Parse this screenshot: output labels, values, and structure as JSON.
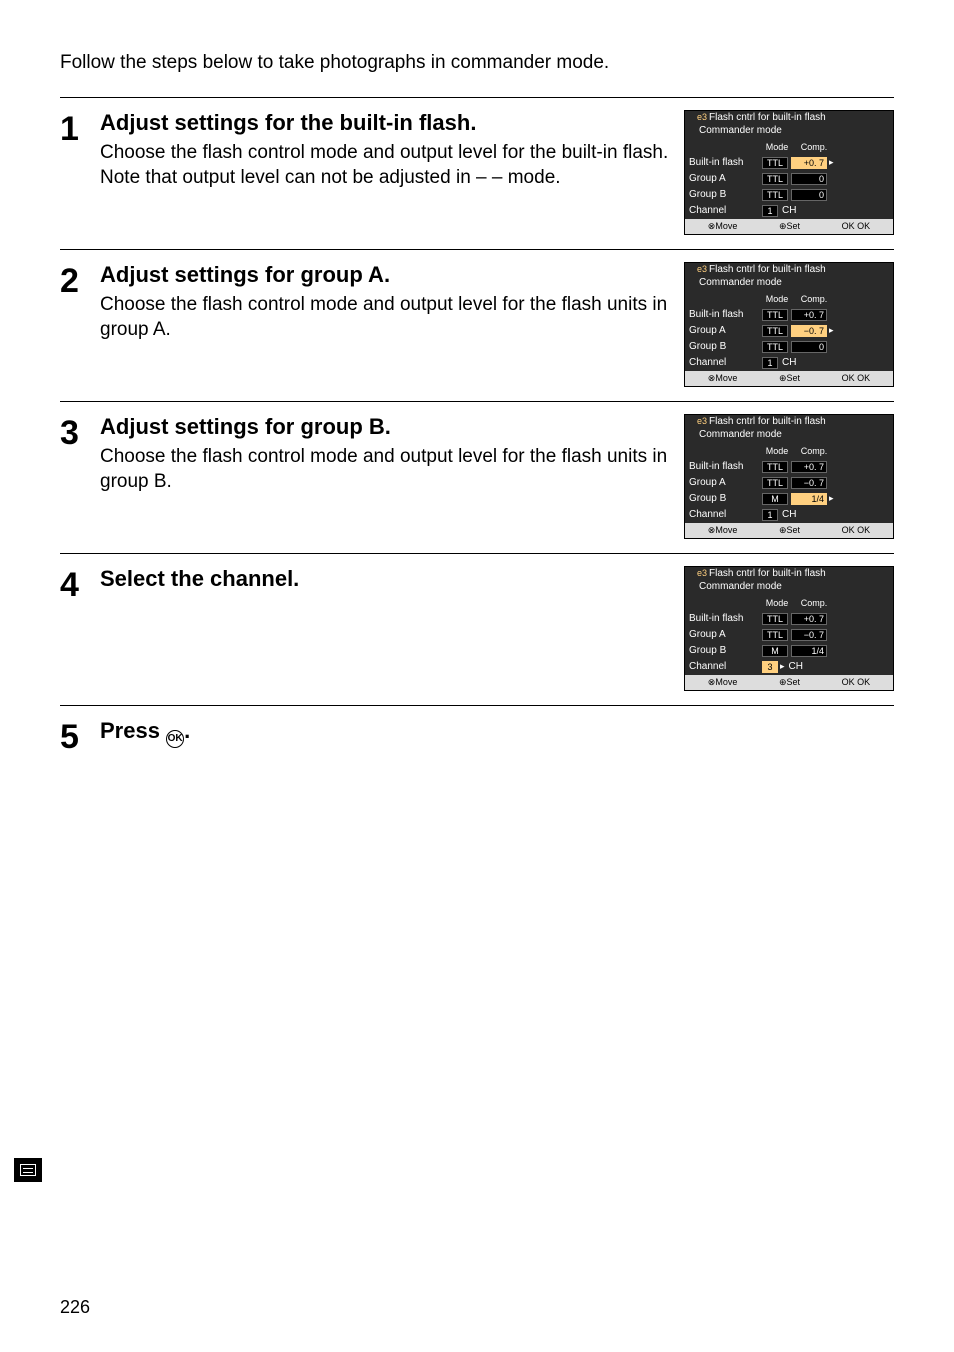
{
  "intro": "Follow the steps below to take photographs in commander mode.",
  "steps": [
    {
      "num": "1",
      "title": "Adjust settings for the built-in flash.",
      "text": "Choose the flash control mode and output level for the built-in flash.  Note that output level can not be adjusted in – – mode.",
      "screen": {
        "title_prefix": "e3",
        "title": "Flash cntrl for built-in flash",
        "subtitle": "Commander mode",
        "col_mode": "Mode",
        "col_comp": "Comp.",
        "rows": [
          {
            "label": "Built-in flash",
            "mode": "TTL",
            "mode_hl": false,
            "comp": "+0. 7",
            "comp_hl": true,
            "comp_after": "▸"
          },
          {
            "label": "Group A",
            "mode": "TTL",
            "mode_hl": false,
            "comp": "0",
            "comp_hl": false
          },
          {
            "label": "Group B",
            "mode": "TTL",
            "mode_hl": false,
            "comp": "0",
            "comp_hl": false
          }
        ],
        "channel_label": "Channel",
        "channel_val": "1",
        "channel_hl": false,
        "channel_suffix": "CH",
        "footer": [
          "⊗Move",
          "⊕Set",
          "OK OK"
        ]
      }
    },
    {
      "num": "2",
      "title": "Adjust settings for group A.",
      "text": "Choose the flash control mode and output level for the flash units in group A.",
      "screen": {
        "title_prefix": "e3",
        "title": "Flash cntrl for built-in flash",
        "subtitle": "Commander mode",
        "col_mode": "Mode",
        "col_comp": "Comp.",
        "rows": [
          {
            "label": "Built-in flash",
            "mode": "TTL",
            "mode_hl": false,
            "comp": "+0. 7",
            "comp_hl": false
          },
          {
            "label": "Group A",
            "mode": "TTL",
            "mode_hl": false,
            "comp": "−0. 7",
            "comp_hl": true,
            "comp_after": "▸"
          },
          {
            "label": "Group B",
            "mode": "TTL",
            "mode_hl": false,
            "comp": "0",
            "comp_hl": false
          }
        ],
        "channel_label": "Channel",
        "channel_val": "1",
        "channel_hl": false,
        "channel_suffix": "CH",
        "footer": [
          "⊗Move",
          "⊕Set",
          "OK OK"
        ]
      }
    },
    {
      "num": "3",
      "title": "Adjust settings for group B.",
      "text": "Choose the flash control mode and output level for the flash units in group B.",
      "screen": {
        "title_prefix": "e3",
        "title": "Flash cntrl for built-in flash",
        "subtitle": "Commander mode",
        "col_mode": "Mode",
        "col_comp": "Comp.",
        "rows": [
          {
            "label": "Built-in flash",
            "mode": "TTL",
            "mode_hl": false,
            "comp": "+0. 7",
            "comp_hl": false
          },
          {
            "label": "Group A",
            "mode": "TTL",
            "mode_hl": false,
            "comp": "−0. 7",
            "comp_hl": false
          },
          {
            "label": "Group B",
            "mode": "M",
            "mode_hl": false,
            "comp": "1/4",
            "comp_hl": true,
            "comp_after": "▸"
          }
        ],
        "channel_label": "Channel",
        "channel_val": "1",
        "channel_hl": false,
        "channel_suffix": "CH",
        "footer": [
          "⊗Move",
          "⊕Set",
          "OK OK"
        ]
      }
    },
    {
      "num": "4",
      "title": "Select the channel.",
      "text": "",
      "screen": {
        "title_prefix": "e3",
        "title": "Flash cntrl for built-in flash",
        "subtitle": "Commander mode",
        "col_mode": "Mode",
        "col_comp": "Comp.",
        "rows": [
          {
            "label": "Built-in flash",
            "mode": "TTL",
            "mode_hl": false,
            "comp": "+0. 7",
            "comp_hl": false
          },
          {
            "label": "Group A",
            "mode": "TTL",
            "mode_hl": false,
            "comp": "−0. 7",
            "comp_hl": false
          },
          {
            "label": "Group B",
            "mode": "M",
            "mode_hl": false,
            "comp": "1/4",
            "comp_hl": false
          }
        ],
        "channel_label": "Channel",
        "channel_val": "3",
        "channel_hl": true,
        "channel_after": "▸",
        "channel_suffix": "CH",
        "footer": [
          "⊗Move",
          "⊕Set",
          "OK OK"
        ]
      }
    }
  ],
  "step5": {
    "num": "5",
    "title_prefix": "Press ",
    "ok": "OK",
    "title_suffix": "."
  },
  "pageNumber": "226",
  "colors": {
    "hl": "#ffd080",
    "screen_bg": "#2a2a2a"
  }
}
